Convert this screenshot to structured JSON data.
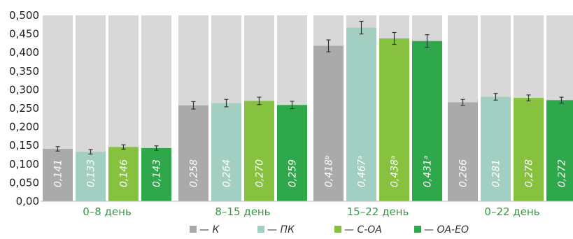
{
  "chart_data": {
    "type": "bar",
    "categories": [
      "0–8 день",
      "8–15 день",
      "15–22 день",
      "0–22 день"
    ],
    "ylim": [
      0,
      0.5
    ],
    "yticks": [
      "0,00",
      "0,050",
      "0,100",
      "0,150",
      "0,200",
      "0,250",
      "0,300",
      "0,350",
      "0,400",
      "0,450",
      "0,500"
    ],
    "legend_position": "bottom",
    "grid": false,
    "series": [
      {
        "name": "— К",
        "color": "#aaaaaa",
        "values": [
          0.141,
          0.258,
          0.418,
          0.266
        ],
        "errors": [
          0.006,
          0.01,
          0.016,
          0.008
        ],
        "labels": [
          "0,141",
          "0,258",
          "0,418ᵇ",
          "0,266"
        ]
      },
      {
        "name": "— ПК",
        "color": "#a3cfc2",
        "values": [
          0.133,
          0.264,
          0.467,
          0.281
        ],
        "errors": [
          0.006,
          0.01,
          0.017,
          0.009
        ],
        "labels": [
          "0,133",
          "0,264",
          "0,467ᵃ",
          "0,281"
        ]
      },
      {
        "name": "— С-ОА",
        "color": "#86c140",
        "values": [
          0.146,
          0.27,
          0.438,
          0.278
        ],
        "errors": [
          0.006,
          0.01,
          0.016,
          0.008
        ],
        "labels": [
          "0,146",
          "0,270",
          "0,438ᵃ",
          "0,278"
        ]
      },
      {
        "name": "— ОА-ЕО",
        "color": "#2ea84a",
        "values": [
          0.143,
          0.259,
          0.431,
          0.272
        ],
        "errors": [
          0.006,
          0.01,
          0.017,
          0.008
        ],
        "labels": [
          "0,143",
          "0,259",
          "0,431ᵃ",
          "0,272"
        ]
      }
    ],
    "background_bar_color": "#d8d8d8"
  }
}
